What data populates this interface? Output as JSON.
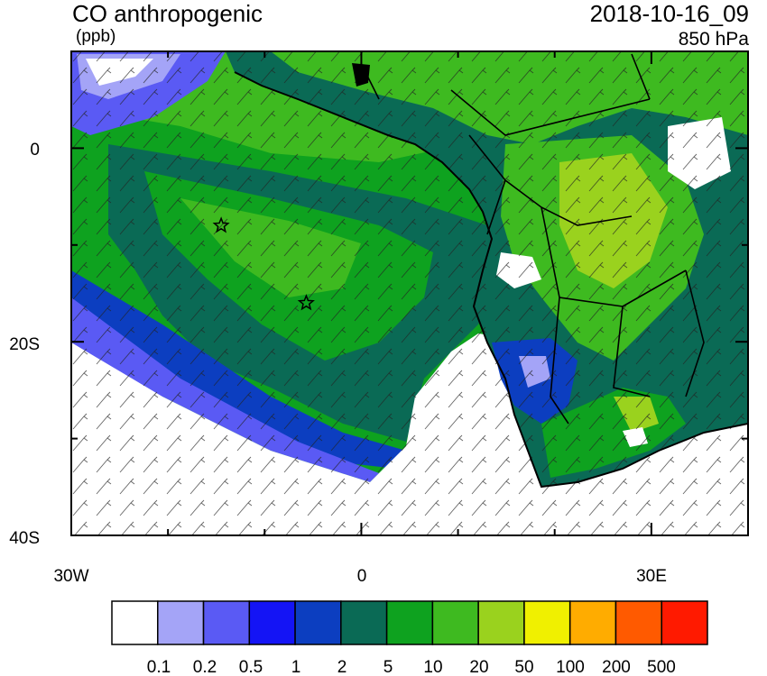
{
  "header": {
    "title": "CO anthropogenic",
    "units": "(ppb)",
    "datetime": "2018-10-16_09",
    "level": "850 hPa"
  },
  "map": {
    "lat_ticks": [
      "0",
      "20S",
      "40S"
    ],
    "lon_ticks": [
      "30W",
      "0",
      "30E"
    ],
    "markers": [
      {
        "name": "station-star-1",
        "lon": -14.5,
        "lat": -8.0
      },
      {
        "name": "station-star-2",
        "lon": -5.7,
        "lat": -16.0
      }
    ]
  },
  "colorbar": {
    "colors": [
      "#ffffff",
      "#a4a4f7",
      "#5a5af4",
      "#1414f5",
      "#0c3ec0",
      "#0a6a55",
      "#0ea21f",
      "#3eba20",
      "#9ad21e",
      "#f0f000",
      "#ffac00",
      "#ff5a00",
      "#ff1a00"
    ],
    "labels": [
      "0.1",
      "0.2",
      "0.5",
      "1",
      "2",
      "5",
      "10",
      "20",
      "50",
      "100",
      "200",
      "500"
    ]
  }
}
